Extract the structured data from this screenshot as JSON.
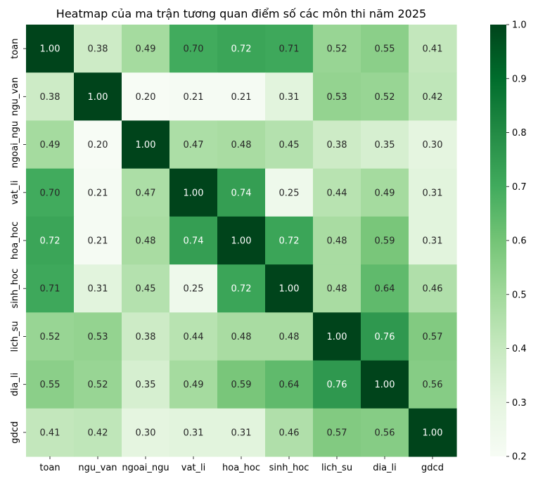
{
  "chart_data": {
    "type": "heatmap",
    "title": "Heatmap của ma trận tương quan điểm số các môn thi năm 2025",
    "rows": [
      "toan",
      "ngu_van",
      "ngoai_ngu",
      "vat_li",
      "hoa_hoc",
      "sinh_hoc",
      "lich_su",
      "dia_li",
      "gdcd"
    ],
    "columns": [
      "toan",
      "ngu_van",
      "ngoai_ngu",
      "vat_li",
      "hoa_hoc",
      "sinh_hoc",
      "lich_su",
      "dia_li",
      "gdcd"
    ],
    "values": [
      [
        1.0,
        0.38,
        0.49,
        0.7,
        0.72,
        0.71,
        0.52,
        0.55,
        0.41
      ],
      [
        0.38,
        1.0,
        0.2,
        0.21,
        0.21,
        0.31,
        0.53,
        0.52,
        0.42
      ],
      [
        0.49,
        0.2,
        1.0,
        0.47,
        0.48,
        0.45,
        0.38,
        0.35,
        0.3
      ],
      [
        0.7,
        0.21,
        0.47,
        1.0,
        0.74,
        0.25,
        0.44,
        0.49,
        0.31
      ],
      [
        0.72,
        0.21,
        0.48,
        0.74,
        1.0,
        0.72,
        0.48,
        0.59,
        0.31
      ],
      [
        0.71,
        0.31,
        0.45,
        0.25,
        0.72,
        1.0,
        0.48,
        0.64,
        0.46
      ],
      [
        0.52,
        0.53,
        0.38,
        0.44,
        0.48,
        0.48,
        1.0,
        0.76,
        0.57
      ],
      [
        0.55,
        0.52,
        0.35,
        0.49,
        0.59,
        0.64,
        0.76,
        1.0,
        0.56
      ],
      [
        0.41,
        0.42,
        0.3,
        0.31,
        0.31,
        0.46,
        0.57,
        0.56,
        1.0
      ]
    ],
    "value_format": "2 decimals",
    "colormap": "Greens",
    "colorbar": {
      "min": 0.2,
      "max": 1.0,
      "ticks": [
        0.2,
        0.3,
        0.4,
        0.5,
        0.6,
        0.7,
        0.8,
        0.9,
        1.0
      ],
      "tick_labels": [
        "0.2",
        "0.3",
        "0.4",
        "0.5",
        "0.6",
        "0.7",
        "0.8",
        "0.9",
        "1.0"
      ]
    },
    "colors": {
      "low": "#f7fcf5",
      "high": "#00441b",
      "dark_text": "#262626",
      "light_text": "#ffffff"
    }
  }
}
